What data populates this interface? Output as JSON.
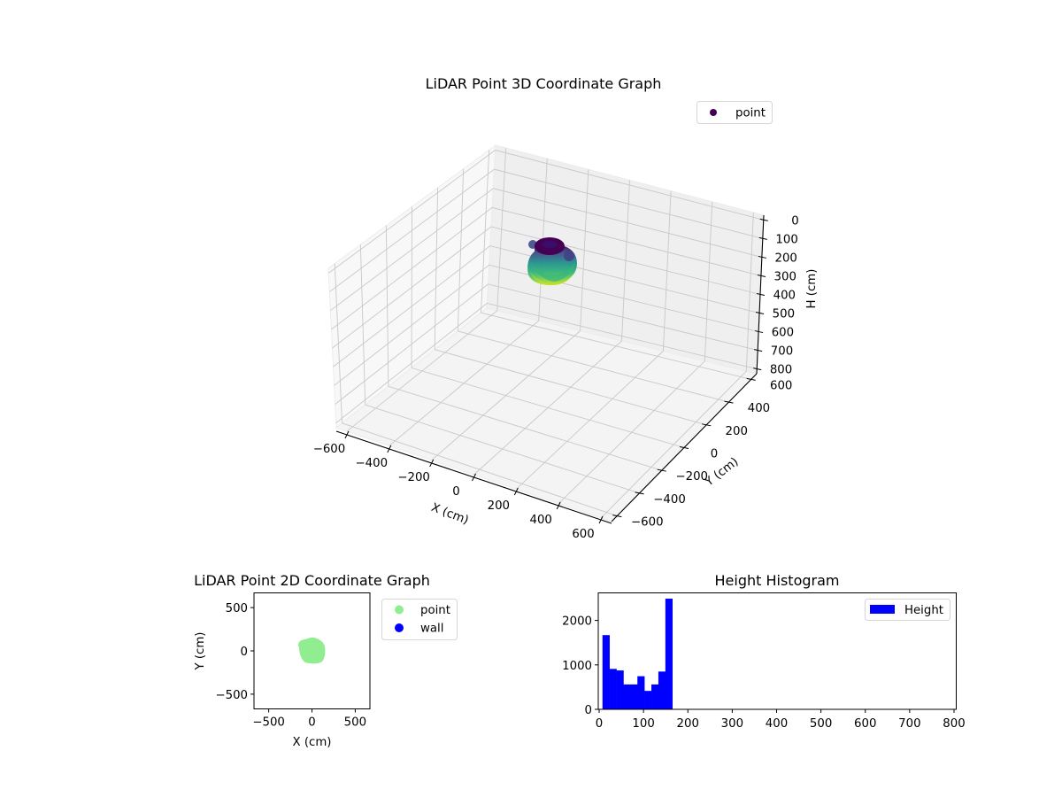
{
  "chart_data": [
    {
      "id": "plot3d",
      "type": "scatter3d",
      "title": "LiDAR Point 3D Coordinate Graph",
      "xlabel": "X (cm)",
      "ylabel": "Y (cm)",
      "zlabel": "H (cm)",
      "xlim": [
        -650,
        650
      ],
      "ylim": [
        -650,
        650
      ],
      "zlim": [
        800,
        0
      ],
      "x_ticks": [
        -600,
        -400,
        -200,
        0,
        200,
        400,
        600
      ],
      "y_ticks": [
        -600,
        -400,
        -200,
        0,
        200,
        400,
        600
      ],
      "z_ticks": [
        0,
        100,
        200,
        300,
        400,
        500,
        600,
        700,
        800
      ],
      "x_tick_labels": [
        "−600",
        "−400",
        "−200",
        "0",
        "200",
        "400",
        "600"
      ],
      "y_tick_labels": [
        "−600",
        "−400",
        "−200",
        "0",
        "200",
        "400",
        "600"
      ],
      "z_tick_labels": [
        "0",
        "100",
        "200",
        "300",
        "400",
        "500",
        "600",
        "700",
        "800"
      ],
      "colormap": "viridis",
      "legend": [
        {
          "label": "point",
          "color": "#440154",
          "marker": "circle"
        }
      ],
      "cluster": {
        "center_x": 0,
        "center_y": 0,
        "radius_cm": 120,
        "h_min": 8,
        "h_max": 165
      },
      "grid": true
    },
    {
      "id": "plot2d",
      "type": "scatter",
      "title": "LiDAR Point 2D Coordinate Graph",
      "xlabel": "X (cm)",
      "ylabel": "Y (cm)",
      "xlim": [
        -670,
        670
      ],
      "ylim": [
        -670,
        670
      ],
      "x_ticks": [
        -500,
        0,
        500
      ],
      "y_ticks": [
        -500,
        0,
        500
      ],
      "x_tick_labels": [
        "−500",
        "0",
        "500"
      ],
      "y_tick_labels": [
        "−500",
        "0",
        "500"
      ],
      "series": [
        {
          "name": "point",
          "color": "#90ee90",
          "cluster": {
            "x_min": -160,
            "x_max": 150,
            "y_min": -140,
            "y_max": 150
          }
        },
        {
          "name": "wall",
          "color": "#0000ff",
          "points": []
        }
      ],
      "legend_position": "outside upper right",
      "grid": false
    },
    {
      "id": "hist",
      "type": "bar",
      "title": "Height Histogram",
      "xlabel": "",
      "ylabel": "",
      "xlim": [
        -2,
        805
      ],
      "ylim": [
        0,
        2620
      ],
      "x_ticks": [
        0,
        100,
        200,
        300,
        400,
        500,
        600,
        700,
        800
      ],
      "y_ticks": [
        0,
        1000,
        2000
      ],
      "bin_edges": [
        7.5,
        23.25,
        39,
        54.75,
        70.5,
        86.25,
        102,
        117.75,
        133.5,
        149.25,
        165
      ],
      "values": [
        1670,
        910,
        875,
        560,
        560,
        745,
        415,
        560,
        850,
        2490
      ],
      "color": "#0000ff",
      "legend": [
        {
          "label": "Height",
          "color": "#0000ff"
        }
      ],
      "legend_position": "upper right",
      "grid": false
    }
  ]
}
